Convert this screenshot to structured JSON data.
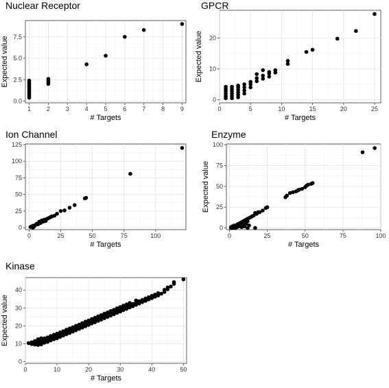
{
  "chart_data": [
    {
      "type": "scatter",
      "title": "Nuclear Receptor",
      "xlabel": "# Targets",
      "ylabel": "Expected value",
      "xlim": [
        0.8,
        9.2
      ],
      "ylim": [
        -0.2,
        9.4
      ],
      "xticks": [
        1,
        2,
        3,
        4,
        5,
        6,
        7,
        8,
        9
      ],
      "yticks": [
        0.0,
        2.5,
        5.0,
        7.5
      ],
      "ytick_labels": [
        "0.0",
        "2.5",
        "5.0",
        "7.5"
      ],
      "grid": true,
      "points": [
        [
          1,
          0.4
        ],
        [
          1,
          0.6
        ],
        [
          1,
          0.8
        ],
        [
          1,
          1.0
        ],
        [
          1,
          1.2
        ],
        [
          1,
          1.4
        ],
        [
          1,
          1.6
        ],
        [
          1,
          1.8
        ],
        [
          1,
          2.0
        ],
        [
          1,
          2.2
        ],
        [
          1,
          2.4
        ],
        [
          2,
          2.0
        ],
        [
          2,
          2.2
        ],
        [
          2,
          2.4
        ],
        [
          2,
          2.6
        ],
        [
          4,
          4.3
        ],
        [
          5,
          5.3
        ],
        [
          6,
          7.5
        ],
        [
          7,
          8.3
        ],
        [
          9,
          9.0
        ]
      ]
    },
    {
      "type": "scatter",
      "title": "GPCR",
      "xlabel": "# Targets",
      "ylabel": "Expected value",
      "xlim": [
        0,
        26
      ],
      "ylim": [
        -1,
        29
      ],
      "xticks": [
        0,
        5,
        10,
        15,
        20,
        25
      ],
      "yticks": [
        0,
        10,
        20
      ],
      "grid": true,
      "points": [
        [
          1,
          0.5
        ],
        [
          1,
          1.2
        ],
        [
          1,
          2.0
        ],
        [
          1,
          2.8
        ],
        [
          1,
          3.5
        ],
        [
          1,
          4.2
        ],
        [
          2,
          0.5
        ],
        [
          2,
          1.2
        ],
        [
          2,
          2.0
        ],
        [
          2,
          2.8
        ],
        [
          2,
          3.5
        ],
        [
          2,
          4.2
        ],
        [
          3,
          0.8
        ],
        [
          3,
          1.6
        ],
        [
          3,
          2.4
        ],
        [
          3,
          3.2
        ],
        [
          3,
          4.0
        ],
        [
          3,
          4.6
        ],
        [
          4,
          2.0
        ],
        [
          4,
          3.0
        ],
        [
          4,
          4.0
        ],
        [
          4,
          5.0
        ],
        [
          5,
          4.0
        ],
        [
          5,
          5.0
        ],
        [
          5,
          5.8
        ],
        [
          6,
          6.0
        ],
        [
          6,
          7.0
        ],
        [
          6,
          8.3
        ],
        [
          7,
          6.8
        ],
        [
          7,
          7.8
        ],
        [
          7,
          9.6
        ],
        [
          8,
          7.5
        ],
        [
          8,
          8.5
        ],
        [
          8,
          9.0
        ],
        [
          9,
          8.8
        ],
        [
          9,
          9.6
        ],
        [
          11,
          11.6
        ],
        [
          11,
          12.6
        ],
        [
          14,
          15.5
        ],
        [
          15,
          16.2
        ],
        [
          19,
          19.8
        ],
        [
          22,
          22.3
        ],
        [
          25,
          27.8
        ]
      ]
    },
    {
      "type": "scatter",
      "title": "Ion Channel",
      "xlabel": "# Targets",
      "ylabel": "",
      "xlim": [
        -3,
        124
      ],
      "ylim": [
        -3,
        126
      ],
      "xticks": [
        0,
        25,
        50,
        75,
        100,
        125
      ],
      "yticks": [
        0,
        25,
        50,
        75,
        100,
        125
      ],
      "grid": true,
      "points": [
        [
          1,
          1
        ],
        [
          2,
          2
        ],
        [
          3,
          3
        ],
        [
          4,
          2
        ],
        [
          5,
          4
        ],
        [
          3,
          0
        ],
        [
          6,
          6
        ],
        [
          7,
          5
        ],
        [
          8,
          9
        ],
        [
          9,
          7
        ],
        [
          10,
          11
        ],
        [
          11,
          9
        ],
        [
          12,
          12
        ],
        [
          13,
          10
        ],
        [
          14,
          13
        ],
        [
          15,
          14
        ],
        [
          16,
          15
        ],
        [
          17,
          16
        ],
        [
          18,
          17
        ],
        [
          20,
          18
        ],
        [
          22,
          21
        ],
        [
          25,
          25
        ],
        [
          28,
          26
        ],
        [
          32,
          30
        ],
        [
          36,
          34
        ],
        [
          44,
          44
        ],
        [
          45,
          45
        ],
        [
          80,
          81
        ],
        [
          121,
          120
        ]
      ]
    },
    {
      "type": "scatter",
      "title": "Enzyme",
      "xlabel": "# Targets",
      "ylabel": "Expected value",
      "xlim": [
        -2,
        100
      ],
      "ylim": [
        -2,
        101
      ],
      "xticks": [
        0,
        25,
        50,
        75,
        100
      ],
      "yticks": [
        0,
        25,
        50,
        75,
        100
      ],
      "grid": true,
      "points": [
        [
          1,
          0
        ],
        [
          1,
          1
        ],
        [
          2,
          0
        ],
        [
          2,
          2
        ],
        [
          3,
          1
        ],
        [
          3,
          3
        ],
        [
          4,
          2
        ],
        [
          4,
          0
        ],
        [
          5,
          4
        ],
        [
          5,
          1
        ],
        [
          6,
          5
        ],
        [
          6,
          2
        ],
        [
          7,
          6
        ],
        [
          7,
          3
        ],
        [
          8,
          1
        ],
        [
          8,
          7
        ],
        [
          9,
          8
        ],
        [
          9,
          4
        ],
        [
          10,
          9
        ],
        [
          10,
          2
        ],
        [
          11,
          10
        ],
        [
          11,
          5
        ],
        [
          12,
          11
        ],
        [
          12,
          8
        ],
        [
          13,
          12
        ],
        [
          13,
          3
        ],
        [
          14,
          13
        ],
        [
          15,
          14
        ],
        [
          16,
          15
        ],
        [
          17,
          18
        ],
        [
          18,
          17
        ],
        [
          17,
          0
        ],
        [
          12,
          0
        ],
        [
          19,
          19
        ],
        [
          20,
          19
        ],
        [
          22,
          21
        ],
        [
          24,
          24
        ],
        [
          25,
          25
        ],
        [
          37,
          37
        ],
        [
          38,
          39
        ],
        [
          40,
          42
        ],
        [
          42,
          43
        ],
        [
          44,
          44
        ],
        [
          45,
          45
        ],
        [
          46,
          46
        ],
        [
          48,
          47
        ],
        [
          50,
          49
        ],
        [
          51,
          51
        ],
        [
          52,
          52
        ],
        [
          54,
          53
        ],
        [
          55,
          54
        ],
        [
          88,
          91
        ],
        [
          96,
          96
        ]
      ]
    },
    {
      "type": "scatter",
      "title": "Kinase",
      "xlabel": "# Targets",
      "ylabel": "Expected value",
      "xlim": [
        0,
        51
      ],
      "ylim": [
        -1,
        47
      ],
      "xticks": [
        0,
        10,
        20,
        30,
        40,
        50
      ],
      "yticks": [
        0,
        10,
        20,
        30,
        40
      ],
      "grid": true,
      "points": [
        [
          1,
          10.3
        ],
        [
          2,
          9.8
        ],
        [
          2,
          10.8
        ],
        [
          3,
          9.5
        ],
        [
          3,
          10.7
        ],
        [
          3,
          11.5
        ],
        [
          4,
          9.3
        ],
        [
          4,
          10.5
        ],
        [
          4,
          11.8
        ],
        [
          4,
          12.5
        ],
        [
          5,
          9.6
        ],
        [
          5,
          11.0
        ],
        [
          5,
          12.4
        ],
        [
          5,
          13.0
        ],
        [
          6,
          10.5
        ],
        [
          6,
          11.8
        ],
        [
          6,
          13.0
        ],
        [
          7,
          11.0
        ],
        [
          7,
          12.3
        ],
        [
          7,
          13.5
        ],
        [
          8,
          11.8
        ],
        [
          8,
          13.0
        ],
        [
          8,
          14.3
        ],
        [
          9,
          12.5
        ],
        [
          9,
          13.7
        ],
        [
          9,
          15.0
        ],
        [
          10,
          13.0
        ],
        [
          10,
          14.3
        ],
        [
          10,
          15.6
        ],
        [
          11,
          13.8
        ],
        [
          11,
          15.0
        ],
        [
          11,
          16.3
        ],
        [
          12,
          14.6
        ],
        [
          12,
          15.8
        ],
        [
          12,
          17.0
        ],
        [
          13,
          15.3
        ],
        [
          13,
          16.5
        ],
        [
          13,
          17.8
        ],
        [
          14,
          16.0
        ],
        [
          14,
          17.2
        ],
        [
          14,
          18.5
        ],
        [
          15,
          16.8
        ],
        [
          15,
          18.0
        ],
        [
          15,
          19.2
        ],
        [
          16,
          17.5
        ],
        [
          16,
          18.7
        ],
        [
          16,
          20.0
        ],
        [
          17,
          18.3
        ],
        [
          17,
          19.5
        ],
        [
          17,
          20.7
        ],
        [
          18,
          19.0
        ],
        [
          18,
          20.3
        ],
        [
          18,
          21.5
        ],
        [
          19,
          19.8
        ],
        [
          19,
          21.0
        ],
        [
          19,
          22.3
        ],
        [
          20,
          20.5
        ],
        [
          20,
          21.8
        ],
        [
          20,
          23.0
        ],
        [
          21,
          21.3
        ],
        [
          21,
          22.5
        ],
        [
          21,
          23.8
        ],
        [
          22,
          22.0
        ],
        [
          22,
          23.3
        ],
        [
          22,
          24.5
        ],
        [
          23,
          22.8
        ],
        [
          23,
          24.0
        ],
        [
          23,
          25.3
        ],
        [
          24,
          23.5
        ],
        [
          24,
          24.8
        ],
        [
          24,
          26.0
        ],
        [
          25,
          24.3
        ],
        [
          25,
          25.5
        ],
        [
          25,
          26.8
        ],
        [
          26,
          25.0
        ],
        [
          26,
          26.3
        ],
        [
          26,
          27.5
        ],
        [
          27,
          25.8
        ],
        [
          27,
          27.0
        ],
        [
          27,
          28.3
        ],
        [
          28,
          26.5
        ],
        [
          28,
          27.8
        ],
        [
          28,
          29.0
        ],
        [
          29,
          27.3
        ],
        [
          29,
          28.5
        ],
        [
          29,
          29.8
        ],
        [
          30,
          28.0
        ],
        [
          30,
          29.3
        ],
        [
          30,
          30.5
        ],
        [
          31,
          28.8
        ],
        [
          31,
          30.0
        ],
        [
          31,
          31.3
        ],
        [
          32,
          29.5
        ],
        [
          32,
          30.8
        ],
        [
          32,
          32.0
        ],
        [
          33,
          30.3
        ],
        [
          33,
          31.5
        ],
        [
          33,
          32.8
        ],
        [
          34,
          31.0
        ],
        [
          34,
          32.3
        ],
        [
          35,
          31.8
        ],
        [
          35,
          33.0
        ],
        [
          35,
          34.2
        ],
        [
          36,
          32.5
        ],
        [
          36,
          33.8
        ],
        [
          37,
          33.3
        ],
        [
          37,
          34.5
        ],
        [
          38,
          34.0
        ],
        [
          38,
          35.3
        ],
        [
          39,
          34.8
        ],
        [
          39,
          36.0
        ],
        [
          40,
          35.5
        ],
        [
          40,
          36.8
        ],
        [
          41,
          36.3
        ],
        [
          41,
          37.5
        ],
        [
          42,
          37.0
        ],
        [
          42,
          38.3
        ],
        [
          43,
          38.0
        ],
        [
          44,
          39.0
        ],
        [
          44,
          40.2
        ],
        [
          45,
          40.5
        ],
        [
          45,
          41.5
        ],
        [
          46,
          42.0
        ],
        [
          47,
          43.5
        ],
        [
          47,
          44.5
        ],
        [
          50,
          46.0
        ]
      ]
    }
  ]
}
